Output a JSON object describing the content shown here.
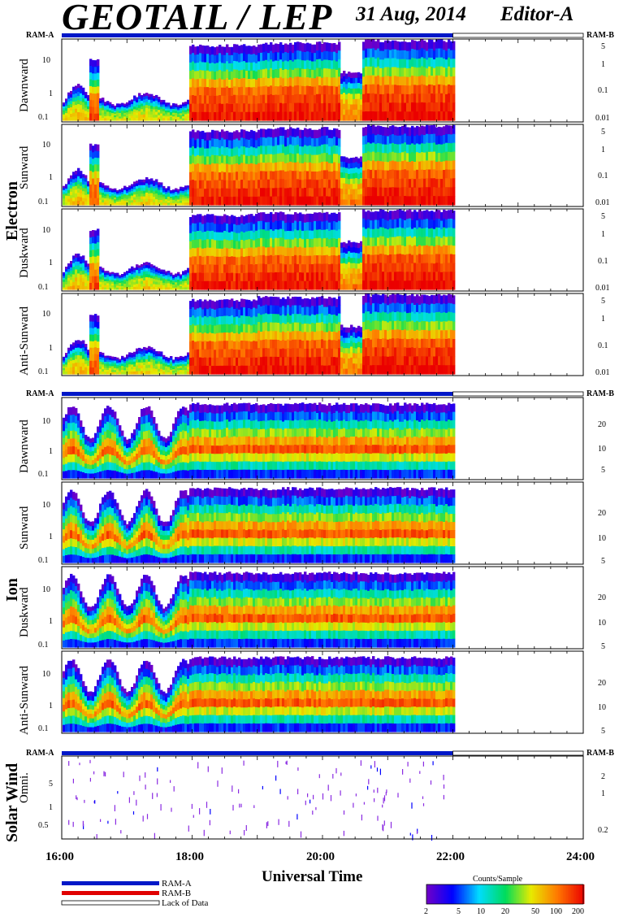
{
  "header": {
    "title": "GEOTAIL / LEP",
    "date": "31 Aug, 2014",
    "editor": "Editor-A"
  },
  "groups": [
    {
      "label": "Electron",
      "ram_left": "RAM-A",
      "ram_right": "RAM-B"
    },
    {
      "label": "Ion",
      "ram_left": "RAM-A",
      "ram_right": "RAM-B"
    },
    {
      "label": "Solar Wind",
      "ram_left": "RAM-A",
      "ram_right": "RAM-B"
    }
  ],
  "panels": [
    {
      "label": "Dawnward",
      "group": "Electron",
      "left_ticks": [
        "10",
        "1",
        "0.1"
      ],
      "right_ticks": [
        "5",
        "1",
        "0.1",
        "0.01"
      ]
    },
    {
      "label": "Sunward",
      "group": "Electron",
      "left_ticks": [
        "10",
        "1",
        "0.1"
      ],
      "right_ticks": [
        "5",
        "1",
        "0.1",
        "0.01"
      ]
    },
    {
      "label": "Duskward",
      "group": "Electron",
      "left_ticks": [
        "10",
        "1",
        "0.1"
      ],
      "right_ticks": [
        "5",
        "1",
        "0.1",
        "0.01"
      ]
    },
    {
      "label": "Anti-Sunward",
      "group": "Electron",
      "left_ticks": [
        "10",
        "1",
        "0.1"
      ],
      "right_ticks": [
        "5",
        "1",
        "0.1",
        "0.01"
      ]
    },
    {
      "label": "Dawnward",
      "group": "Ion",
      "left_ticks": [
        "10",
        "1",
        "0.1"
      ],
      "right_ticks": [
        "20",
        "10",
        "5"
      ]
    },
    {
      "label": "Sunward",
      "group": "Ion",
      "left_ticks": [
        "10",
        "1",
        "0.1"
      ],
      "right_ticks": [
        "20",
        "10",
        "5"
      ]
    },
    {
      "label": "Duskward",
      "group": "Ion",
      "left_ticks": [
        "10",
        "1",
        "0.1"
      ],
      "right_ticks": [
        "20",
        "10",
        "5"
      ]
    },
    {
      "label": "Anti-Sunward",
      "group": "Ion",
      "left_ticks": [
        "10",
        "1",
        "0.1"
      ],
      "right_ticks": [
        "20",
        "10",
        "5"
      ]
    },
    {
      "label": "Omni.",
      "group": "Solar Wind",
      "left_ticks": [
        "5",
        "1",
        "0.5"
      ],
      "right_ticks": [
        "2",
        "1",
        "0.2"
      ]
    }
  ],
  "chart_data": {
    "type": "heatmap",
    "xlabel": "Universal Time",
    "x_ticks": [
      "16:00",
      "18:00",
      "20:00",
      "22:00",
      "24:00"
    ],
    "x_range_hours": [
      16,
      24
    ],
    "data_end_hour": 22,
    "colorbar": {
      "title": "Counts/Sample",
      "ticks": [
        "2",
        "5",
        "10",
        "20",
        "50",
        "100",
        "200"
      ]
    },
    "legend": [
      {
        "label": "RAM-A",
        "color": "#0018c8"
      },
      {
        "label": "RAM-B",
        "color": "#e00000"
      },
      {
        "label": "Lack of Data",
        "color": "#ffffff"
      }
    ]
  }
}
